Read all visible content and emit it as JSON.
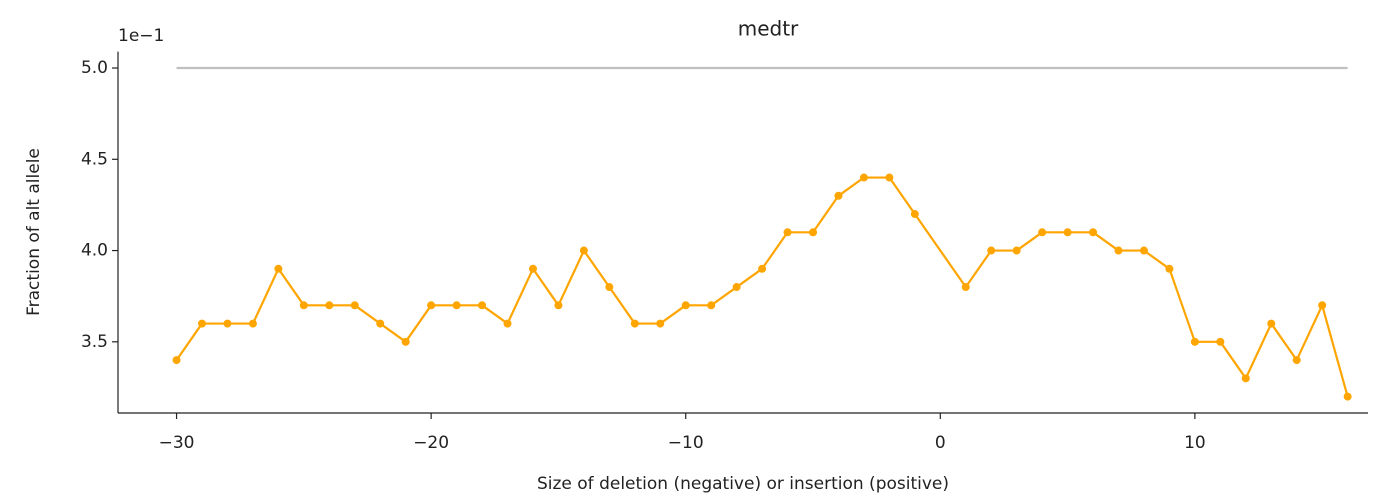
{
  "chart_data": {
    "type": "line",
    "title": "medtr",
    "x_label": "Size of deletion (negative) or insertion (positive)",
    "y_label": "Fraction of alt allele",
    "y_offset_label": "1e−1",
    "xlim": [
      -32.3,
      16.8
    ],
    "ylim": [
      3.11,
      5.09
    ],
    "xticks": [
      {
        "value": -30,
        "label": "−30"
      },
      {
        "value": -20,
        "label": "−20"
      },
      {
        "value": -10,
        "label": "−10"
      },
      0,
      10
    ],
    "yticks": [
      {
        "value": 3.5,
        "label": "3.5"
      },
      {
        "value": 4,
        "label": "4.0"
      },
      {
        "value": 4.5,
        "label": "4.5"
      },
      {
        "value": 5,
        "label": "5.0"
      }
    ],
    "series": [
      {
        "color": "#c0c0c0",
        "marker": false,
        "x": [
          -30,
          16
        ],
        "values": [
          5.0,
          5.0
        ]
      },
      {
        "color": "#ffa500",
        "marker": true,
        "x": [
          -30,
          -29,
          -28,
          -27,
          -26,
          -25,
          -24,
          -23,
          -22,
          -21,
          -20,
          -19,
          -18,
          -17,
          -16,
          -15,
          -14,
          -13,
          -12,
          -11,
          -10,
          -9,
          -8,
          -7,
          -6,
          -5,
          -4,
          -3,
          -2,
          -1,
          1,
          2,
          3,
          4,
          5,
          6,
          7,
          8,
          9,
          10,
          11,
          12,
          13,
          14,
          15,
          16
        ],
        "values": [
          3.4,
          3.6,
          3.6,
          3.6,
          3.9,
          3.7,
          3.7,
          3.7,
          3.6,
          3.5,
          3.7,
          3.7,
          3.7,
          3.6,
          3.9,
          3.7,
          4.0,
          3.8,
          3.6,
          3.6,
          3.7,
          3.7,
          3.8,
          3.9,
          4.1,
          4.1,
          4.3,
          4.4,
          4.4,
          4.2,
          3.8,
          4.0,
          4.0,
          4.1,
          4.1,
          4.1,
          4.0,
          4.0,
          3.9,
          3.5,
          3.5,
          3.3,
          3.6,
          3.4,
          3.7,
          3.2
        ]
      }
    ]
  }
}
